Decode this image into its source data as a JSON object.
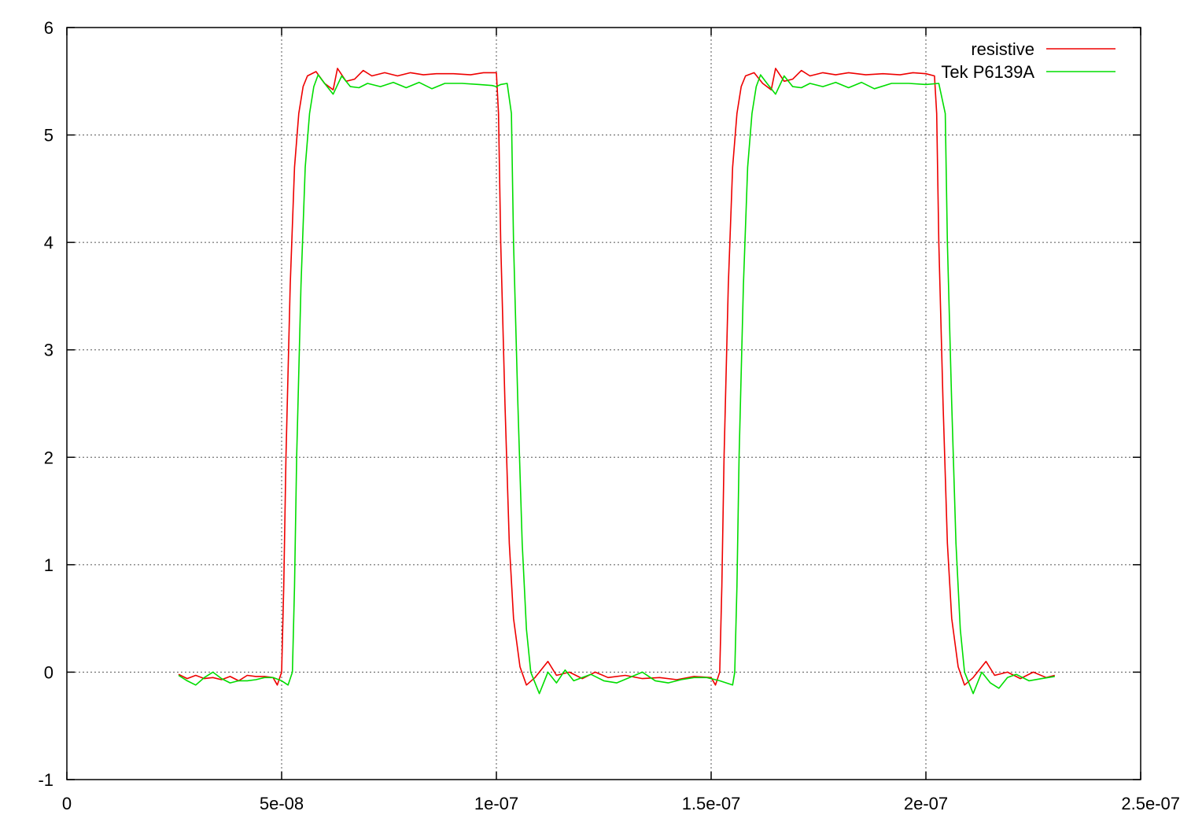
{
  "chart_data": {
    "type": "line",
    "xlim": [
      0,
      2.5e-07
    ],
    "ylim": [
      -1,
      6
    ],
    "xticks": [
      0,
      5e-08,
      1e-07,
      1.5e-07,
      2e-07,
      2.5e-07
    ],
    "xtick_labels": [
      "0",
      "5e-08",
      "1e-07",
      "1.5e-07",
      "2e-07",
      "2.5e-07"
    ],
    "yticks": [
      -1,
      0,
      1,
      2,
      3,
      4,
      5,
      6
    ],
    "ytick_labels": [
      "-1",
      "0",
      "1",
      "2",
      "3",
      "4",
      "5",
      "6"
    ],
    "grid": true,
    "legend_position": "top-right",
    "series": [
      {
        "name": "resistive",
        "color": "#ee0000",
        "points": [
          [
            2.6e-08,
            -0.02
          ],
          [
            2.8e-08,
            -0.06
          ],
          [
            3e-08,
            -0.03
          ],
          [
            3.2e-08,
            -0.06
          ],
          [
            3.4e-08,
            -0.05
          ],
          [
            3.6e-08,
            -0.07
          ],
          [
            3.8e-08,
            -0.04
          ],
          [
            4e-08,
            -0.08
          ],
          [
            4.2e-08,
            -0.03
          ],
          [
            4.4e-08,
            -0.04
          ],
          [
            4.6e-08,
            -0.04
          ],
          [
            4.8e-08,
            -0.05
          ],
          [
            4.9e-08,
            -0.12
          ],
          [
            5e-08,
            0.0
          ],
          [
            5.05e-08,
            0.8
          ],
          [
            5.1e-08,
            2.0
          ],
          [
            5.2e-08,
            3.6
          ],
          [
            5.3e-08,
            4.7
          ],
          [
            5.4e-08,
            5.2
          ],
          [
            5.5e-08,
            5.45
          ],
          [
            5.6e-08,
            5.55
          ],
          [
            5.8e-08,
            5.59
          ],
          [
            6e-08,
            5.48
          ],
          [
            6.2e-08,
            5.42
          ],
          [
            6.3e-08,
            5.62
          ],
          [
            6.5e-08,
            5.5
          ],
          [
            6.7e-08,
            5.52
          ],
          [
            6.9e-08,
            5.6
          ],
          [
            7.1e-08,
            5.55
          ],
          [
            7.4e-08,
            5.58
          ],
          [
            7.7e-08,
            5.55
          ],
          [
            8e-08,
            5.58
          ],
          [
            8.3e-08,
            5.56
          ],
          [
            8.6e-08,
            5.57
          ],
          [
            9e-08,
            5.57
          ],
          [
            9.4e-08,
            5.56
          ],
          [
            9.7e-08,
            5.58
          ],
          [
            1e-07,
            5.58
          ],
          [
            1.005e-07,
            5.2
          ],
          [
            1.01e-07,
            4.0
          ],
          [
            1.02e-07,
            2.5
          ],
          [
            1.03e-07,
            1.2
          ],
          [
            1.04e-07,
            0.5
          ],
          [
            1.055e-07,
            0.05
          ],
          [
            1.07e-07,
            -0.12
          ],
          [
            1.09e-07,
            -0.05
          ],
          [
            1.12e-07,
            0.1
          ],
          [
            1.14e-07,
            -0.03
          ],
          [
            1.17e-07,
            0.0
          ],
          [
            1.2e-07,
            -0.06
          ],
          [
            1.23e-07,
            0.0
          ],
          [
            1.26e-07,
            -0.05
          ],
          [
            1.3e-07,
            -0.03
          ],
          [
            1.34e-07,
            -0.06
          ],
          [
            1.38e-07,
            -0.05
          ],
          [
            1.42e-07,
            -0.07
          ],
          [
            1.46e-07,
            -0.04
          ],
          [
            1.5e-07,
            -0.05
          ],
          [
            1.51e-07,
            -0.12
          ],
          [
            1.52e-07,
            0.0
          ],
          [
            1.525e-07,
            0.8
          ],
          [
            1.53e-07,
            2.0
          ],
          [
            1.54e-07,
            3.6
          ],
          [
            1.55e-07,
            4.7
          ],
          [
            1.56e-07,
            5.2
          ],
          [
            1.57e-07,
            5.45
          ],
          [
            1.58e-07,
            5.55
          ],
          [
            1.6e-07,
            5.58
          ],
          [
            1.62e-07,
            5.48
          ],
          [
            1.64e-07,
            5.42
          ],
          [
            1.65e-07,
            5.62
          ],
          [
            1.67e-07,
            5.5
          ],
          [
            1.69e-07,
            5.52
          ],
          [
            1.71e-07,
            5.6
          ],
          [
            1.73e-07,
            5.55
          ],
          [
            1.76e-07,
            5.58
          ],
          [
            1.79e-07,
            5.56
          ],
          [
            1.82e-07,
            5.58
          ],
          [
            1.86e-07,
            5.56
          ],
          [
            1.9e-07,
            5.57
          ],
          [
            1.94e-07,
            5.56
          ],
          [
            1.97e-07,
            5.58
          ],
          [
            2e-07,
            5.57
          ],
          [
            2.02e-07,
            5.55
          ],
          [
            2.025e-07,
            5.2
          ],
          [
            2.03e-07,
            4.0
          ],
          [
            2.04e-07,
            2.5
          ],
          [
            2.05e-07,
            1.2
          ],
          [
            2.06e-07,
            0.5
          ],
          [
            2.075e-07,
            0.05
          ],
          [
            2.09e-07,
            -0.12
          ],
          [
            2.11e-07,
            -0.05
          ],
          [
            2.14e-07,
            0.1
          ],
          [
            2.16e-07,
            -0.03
          ],
          [
            2.19e-07,
            0.0
          ],
          [
            2.22e-07,
            -0.06
          ],
          [
            2.25e-07,
            0.0
          ],
          [
            2.28e-07,
            -0.05
          ],
          [
            2.3e-07,
            -0.03
          ]
        ]
      },
      {
        "name": "Tek P6139A",
        "color": "#00dd00",
        "points": [
          [
            2.6e-08,
            -0.03
          ],
          [
            2.8e-08,
            -0.08
          ],
          [
            3e-08,
            -0.12
          ],
          [
            3.2e-08,
            -0.05
          ],
          [
            3.4e-08,
            0.0
          ],
          [
            3.6e-08,
            -0.06
          ],
          [
            3.8e-08,
            -0.1
          ],
          [
            4e-08,
            -0.08
          ],
          [
            4.2e-08,
            -0.08
          ],
          [
            4.4e-08,
            -0.07
          ],
          [
            4.6e-08,
            -0.05
          ],
          [
            4.8e-08,
            -0.05
          ],
          [
            5e-08,
            -0.08
          ],
          [
            5.15e-08,
            -0.12
          ],
          [
            5.25e-08,
            0.0
          ],
          [
            5.3e-08,
            0.8
          ],
          [
            5.35e-08,
            2.0
          ],
          [
            5.45e-08,
            3.6
          ],
          [
            5.55e-08,
            4.7
          ],
          [
            5.65e-08,
            5.2
          ],
          [
            5.75e-08,
            5.45
          ],
          [
            5.85e-08,
            5.56
          ],
          [
            6e-08,
            5.48
          ],
          [
            6.2e-08,
            5.38
          ],
          [
            6.4e-08,
            5.55
          ],
          [
            6.6e-08,
            5.45
          ],
          [
            6.8e-08,
            5.44
          ],
          [
            7e-08,
            5.48
          ],
          [
            7.3e-08,
            5.45
          ],
          [
            7.6e-08,
            5.49
          ],
          [
            7.9e-08,
            5.44
          ],
          [
            8.2e-08,
            5.49
          ],
          [
            8.5e-08,
            5.43
          ],
          [
            8.8e-08,
            5.48
          ],
          [
            9.2e-08,
            5.48
          ],
          [
            9.6e-08,
            5.47
          ],
          [
            9.9e-08,
            5.46
          ],
          [
            1e-07,
            5.45
          ],
          [
            1.01e-07,
            5.47
          ],
          [
            1.025e-07,
            5.48
          ],
          [
            1.035e-07,
            5.2
          ],
          [
            1.04e-07,
            4.0
          ],
          [
            1.05e-07,
            2.5
          ],
          [
            1.06e-07,
            1.2
          ],
          [
            1.07e-07,
            0.4
          ],
          [
            1.08e-07,
            0.0
          ],
          [
            1.1e-07,
            -0.2
          ],
          [
            1.12e-07,
            0.0
          ],
          [
            1.14e-07,
            -0.1
          ],
          [
            1.16e-07,
            0.02
          ],
          [
            1.18e-07,
            -0.08
          ],
          [
            1.2e-07,
            -0.05
          ],
          [
            1.22e-07,
            -0.02
          ],
          [
            1.25e-07,
            -0.08
          ],
          [
            1.28e-07,
            -0.1
          ],
          [
            1.31e-07,
            -0.05
          ],
          [
            1.34e-07,
            0.0
          ],
          [
            1.37e-07,
            -0.08
          ],
          [
            1.4e-07,
            -0.1
          ],
          [
            1.43e-07,
            -0.07
          ],
          [
            1.46e-07,
            -0.05
          ],
          [
            1.49e-07,
            -0.05
          ],
          [
            1.52e-07,
            -0.08
          ],
          [
            1.55e-07,
            -0.12
          ],
          [
            1.555e-07,
            0.0
          ],
          [
            1.56e-07,
            0.8
          ],
          [
            1.565e-07,
            2.0
          ],
          [
            1.575e-07,
            3.6
          ],
          [
            1.585e-07,
            4.7
          ],
          [
            1.595e-07,
            5.2
          ],
          [
            1.605e-07,
            5.45
          ],
          [
            1.615e-07,
            5.56
          ],
          [
            1.63e-07,
            5.48
          ],
          [
            1.65e-07,
            5.38
          ],
          [
            1.67e-07,
            5.55
          ],
          [
            1.69e-07,
            5.45
          ],
          [
            1.71e-07,
            5.44
          ],
          [
            1.73e-07,
            5.48
          ],
          [
            1.76e-07,
            5.45
          ],
          [
            1.79e-07,
            5.49
          ],
          [
            1.82e-07,
            5.44
          ],
          [
            1.85e-07,
            5.49
          ],
          [
            1.88e-07,
            5.43
          ],
          [
            1.92e-07,
            5.48
          ],
          [
            1.96e-07,
            5.48
          ],
          [
            2e-07,
            5.47
          ],
          [
            2.03e-07,
            5.48
          ],
          [
            2.045e-07,
            5.2
          ],
          [
            2.05e-07,
            4.0
          ],
          [
            2.06e-07,
            2.5
          ],
          [
            2.07e-07,
            1.2
          ],
          [
            2.08e-07,
            0.4
          ],
          [
            2.09e-07,
            0.0
          ],
          [
            2.11e-07,
            -0.2
          ],
          [
            2.13e-07,
            0.0
          ],
          [
            2.15e-07,
            -0.1
          ],
          [
            2.17e-07,
            -0.15
          ],
          [
            2.19e-07,
            -0.05
          ],
          [
            2.21e-07,
            -0.02
          ],
          [
            2.24e-07,
            -0.08
          ],
          [
            2.27e-07,
            -0.06
          ],
          [
            2.3e-07,
            -0.04
          ]
        ]
      }
    ]
  }
}
